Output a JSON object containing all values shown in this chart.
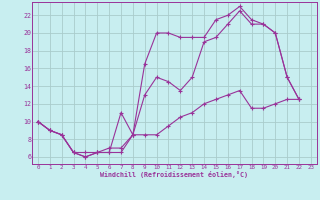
{
  "xlabel": "Windchill (Refroidissement éolien,°C)",
  "background_color": "#c8eef0",
  "grid_color": "#aacccc",
  "line_color": "#993399",
  "xlim_min": -0.5,
  "xlim_max": 23.5,
  "ylim_min": 5.2,
  "ylim_max": 23.5,
  "xticks": [
    0,
    1,
    2,
    3,
    4,
    5,
    6,
    7,
    8,
    9,
    10,
    11,
    12,
    13,
    14,
    15,
    16,
    17,
    18,
    19,
    20,
    21,
    22,
    23
  ],
  "yticks": [
    6,
    8,
    10,
    12,
    14,
    16,
    18,
    20,
    22
  ],
  "line1_x": [
    0,
    1,
    2,
    3,
    4,
    5,
    6,
    7,
    8,
    9,
    10,
    11,
    12,
    13,
    14,
    15,
    16,
    17,
    18,
    19,
    20,
    21,
    22
  ],
  "line1_y": [
    10.0,
    9.0,
    8.5,
    6.5,
    6.0,
    6.5,
    6.5,
    11.0,
    8.5,
    16.5,
    20.0,
    20.0,
    19.5,
    19.5,
    19.5,
    21.5,
    22.0,
    23.0,
    21.5,
    21.0,
    20.0,
    15.0,
    12.5
  ],
  "line2_x": [
    0,
    1,
    2,
    3,
    4,
    5,
    6,
    7,
    8,
    9,
    10,
    11,
    12,
    13,
    14,
    15,
    16,
    17,
    18,
    19,
    20,
    21,
    22
  ],
  "line2_y": [
    10.0,
    9.0,
    8.5,
    6.5,
    6.5,
    6.5,
    7.0,
    7.0,
    8.5,
    13.0,
    15.0,
    14.5,
    13.5,
    15.0,
    19.0,
    19.5,
    21.0,
    22.5,
    21.0,
    21.0,
    20.0,
    15.0,
    12.5
  ],
  "line3_x": [
    0,
    1,
    2,
    3,
    4,
    5,
    6,
    7,
    8,
    9,
    10,
    11,
    12,
    13,
    14,
    15,
    16,
    17,
    18,
    19,
    20,
    21,
    22
  ],
  "line3_y": [
    10.0,
    9.0,
    8.5,
    6.5,
    6.0,
    6.5,
    6.5,
    6.5,
    8.5,
    8.5,
    8.5,
    9.5,
    10.5,
    11.0,
    12.0,
    12.5,
    13.0,
    13.5,
    11.5,
    11.5,
    12.0,
    12.5,
    12.5
  ]
}
